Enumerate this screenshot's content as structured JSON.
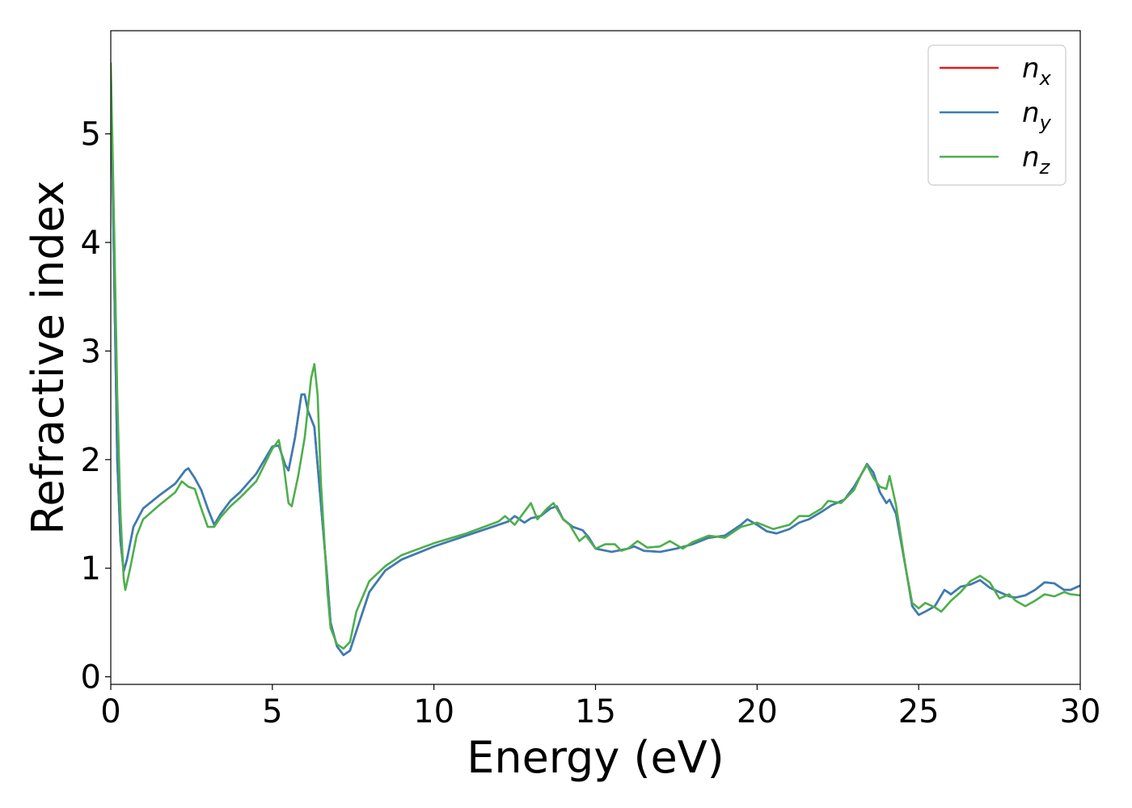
{
  "chart_data": {
    "type": "line",
    "xlabel": "Energy (eV)",
    "ylabel": "Refractive index",
    "xlim": [
      0,
      30
    ],
    "ylim": [
      -0.07,
      5.95
    ],
    "xticks": [
      0,
      5,
      10,
      15,
      20,
      25,
      30
    ],
    "yticks": [
      0,
      1,
      2,
      3,
      4,
      5
    ],
    "grid": false,
    "legend_position": "top-right",
    "series": [
      {
        "name": "n",
        "subscript": "x",
        "color": "#e41a1c",
        "points": [
          [
            0,
            5.6
          ],
          [
            0.1,
            3.8
          ],
          [
            0.2,
            2.0
          ],
          [
            0.3,
            1.25
          ],
          [
            0.4,
            0.97
          ],
          [
            0.5,
            1.08
          ],
          [
            0.7,
            1.38
          ],
          [
            1.0,
            1.55
          ],
          [
            1.5,
            1.67
          ],
          [
            2.0,
            1.78
          ],
          [
            2.3,
            1.9
          ],
          [
            2.4,
            1.92
          ],
          [
            2.6,
            1.83
          ],
          [
            2.8,
            1.72
          ],
          [
            3.0,
            1.55
          ],
          [
            3.2,
            1.4
          ],
          [
            3.4,
            1.5
          ],
          [
            3.7,
            1.62
          ],
          [
            4.0,
            1.7
          ],
          [
            4.5,
            1.87
          ],
          [
            5.0,
            2.12
          ],
          [
            5.2,
            2.13
          ],
          [
            5.4,
            1.95
          ],
          [
            5.5,
            1.9
          ],
          [
            5.7,
            2.2
          ],
          [
            5.9,
            2.6
          ],
          [
            6.0,
            2.6
          ],
          [
            6.1,
            2.45
          ],
          [
            6.3,
            2.3
          ],
          [
            6.5,
            1.6
          ],
          [
            6.7,
            0.9
          ],
          [
            6.8,
            0.5
          ],
          [
            7.0,
            0.28
          ],
          [
            7.2,
            0.2
          ],
          [
            7.4,
            0.24
          ],
          [
            7.6,
            0.42
          ],
          [
            8.0,
            0.78
          ],
          [
            8.5,
            0.98
          ],
          [
            9.0,
            1.08
          ],
          [
            10.0,
            1.2
          ],
          [
            11.0,
            1.3
          ],
          [
            12.0,
            1.4
          ],
          [
            12.3,
            1.43
          ],
          [
            12.5,
            1.48
          ],
          [
            12.8,
            1.42
          ],
          [
            13.0,
            1.46
          ],
          [
            13.3,
            1.48
          ],
          [
            13.6,
            1.55
          ],
          [
            13.8,
            1.57
          ],
          [
            14.0,
            1.45
          ],
          [
            14.3,
            1.38
          ],
          [
            14.6,
            1.35
          ],
          [
            14.8,
            1.28
          ],
          [
            15.0,
            1.18
          ],
          [
            15.5,
            1.15
          ],
          [
            16.0,
            1.18
          ],
          [
            16.2,
            1.2
          ],
          [
            16.5,
            1.16
          ],
          [
            17.0,
            1.15
          ],
          [
            17.5,
            1.18
          ],
          [
            18.0,
            1.22
          ],
          [
            18.5,
            1.28
          ],
          [
            19.0,
            1.3
          ],
          [
            19.5,
            1.4
          ],
          [
            19.7,
            1.45
          ],
          [
            20.0,
            1.4
          ],
          [
            20.3,
            1.34
          ],
          [
            20.6,
            1.32
          ],
          [
            21.0,
            1.36
          ],
          [
            21.3,
            1.42
          ],
          [
            21.6,
            1.45
          ],
          [
            22.0,
            1.52
          ],
          [
            22.3,
            1.58
          ],
          [
            22.7,
            1.63
          ],
          [
            23.0,
            1.75
          ],
          [
            23.2,
            1.85
          ],
          [
            23.4,
            1.96
          ],
          [
            23.6,
            1.88
          ],
          [
            23.8,
            1.7
          ],
          [
            24.0,
            1.6
          ],
          [
            24.1,
            1.63
          ],
          [
            24.3,
            1.5
          ],
          [
            24.6,
            1.0
          ],
          [
            24.8,
            0.65
          ],
          [
            25.0,
            0.57
          ],
          [
            25.2,
            0.6
          ],
          [
            25.5,
            0.65
          ],
          [
            25.8,
            0.8
          ],
          [
            26.0,
            0.76
          ],
          [
            26.3,
            0.83
          ],
          [
            26.6,
            0.85
          ],
          [
            26.9,
            0.89
          ],
          [
            27.2,
            0.82
          ],
          [
            27.5,
            0.78
          ],
          [
            27.8,
            0.74
          ],
          [
            28.0,
            0.73
          ],
          [
            28.3,
            0.75
          ],
          [
            28.6,
            0.8
          ],
          [
            28.9,
            0.87
          ],
          [
            29.2,
            0.86
          ],
          [
            29.5,
            0.8
          ],
          [
            29.7,
            0.8
          ],
          [
            30.0,
            0.84
          ]
        ]
      },
      {
        "name": "n",
        "subscript": "y",
        "color": "#377eb8",
        "points": [
          [
            0,
            5.6
          ],
          [
            0.1,
            3.8
          ],
          [
            0.2,
            2.0
          ],
          [
            0.3,
            1.25
          ],
          [
            0.4,
            0.97
          ],
          [
            0.5,
            1.08
          ],
          [
            0.7,
            1.38
          ],
          [
            1.0,
            1.55
          ],
          [
            1.5,
            1.67
          ],
          [
            2.0,
            1.78
          ],
          [
            2.3,
            1.9
          ],
          [
            2.4,
            1.92
          ],
          [
            2.6,
            1.83
          ],
          [
            2.8,
            1.72
          ],
          [
            3.0,
            1.55
          ],
          [
            3.2,
            1.4
          ],
          [
            3.4,
            1.5
          ],
          [
            3.7,
            1.62
          ],
          [
            4.0,
            1.7
          ],
          [
            4.5,
            1.87
          ],
          [
            5.0,
            2.12
          ],
          [
            5.2,
            2.13
          ],
          [
            5.4,
            1.95
          ],
          [
            5.5,
            1.9
          ],
          [
            5.7,
            2.2
          ],
          [
            5.9,
            2.6
          ],
          [
            6.0,
            2.6
          ],
          [
            6.1,
            2.45
          ],
          [
            6.3,
            2.3
          ],
          [
            6.5,
            1.6
          ],
          [
            6.7,
            0.9
          ],
          [
            6.8,
            0.5
          ],
          [
            7.0,
            0.28
          ],
          [
            7.2,
            0.2
          ],
          [
            7.4,
            0.24
          ],
          [
            7.6,
            0.42
          ],
          [
            8.0,
            0.78
          ],
          [
            8.5,
            0.98
          ],
          [
            9.0,
            1.08
          ],
          [
            10.0,
            1.2
          ],
          [
            11.0,
            1.3
          ],
          [
            12.0,
            1.4
          ],
          [
            12.3,
            1.43
          ],
          [
            12.5,
            1.48
          ],
          [
            12.8,
            1.42
          ],
          [
            13.0,
            1.46
          ],
          [
            13.3,
            1.48
          ],
          [
            13.6,
            1.55
          ],
          [
            13.8,
            1.57
          ],
          [
            14.0,
            1.45
          ],
          [
            14.3,
            1.38
          ],
          [
            14.6,
            1.35
          ],
          [
            14.8,
            1.28
          ],
          [
            15.0,
            1.18
          ],
          [
            15.5,
            1.15
          ],
          [
            16.0,
            1.18
          ],
          [
            16.2,
            1.2
          ],
          [
            16.5,
            1.16
          ],
          [
            17.0,
            1.15
          ],
          [
            17.5,
            1.18
          ],
          [
            18.0,
            1.22
          ],
          [
            18.5,
            1.28
          ],
          [
            19.0,
            1.3
          ],
          [
            19.5,
            1.4
          ],
          [
            19.7,
            1.45
          ],
          [
            20.0,
            1.4
          ],
          [
            20.3,
            1.34
          ],
          [
            20.6,
            1.32
          ],
          [
            21.0,
            1.36
          ],
          [
            21.3,
            1.42
          ],
          [
            21.6,
            1.45
          ],
          [
            22.0,
            1.52
          ],
          [
            22.3,
            1.58
          ],
          [
            22.7,
            1.63
          ],
          [
            23.0,
            1.75
          ],
          [
            23.2,
            1.85
          ],
          [
            23.4,
            1.96
          ],
          [
            23.6,
            1.88
          ],
          [
            23.8,
            1.7
          ],
          [
            24.0,
            1.6
          ],
          [
            24.1,
            1.63
          ],
          [
            24.3,
            1.5
          ],
          [
            24.6,
            1.0
          ],
          [
            24.8,
            0.65
          ],
          [
            25.0,
            0.57
          ],
          [
            25.2,
            0.6
          ],
          [
            25.5,
            0.65
          ],
          [
            25.8,
            0.8
          ],
          [
            26.0,
            0.76
          ],
          [
            26.3,
            0.83
          ],
          [
            26.6,
            0.85
          ],
          [
            26.9,
            0.89
          ],
          [
            27.2,
            0.82
          ],
          [
            27.5,
            0.78
          ],
          [
            27.8,
            0.74
          ],
          [
            28.0,
            0.73
          ],
          [
            28.3,
            0.75
          ],
          [
            28.6,
            0.8
          ],
          [
            28.9,
            0.87
          ],
          [
            29.2,
            0.86
          ],
          [
            29.5,
            0.8
          ],
          [
            29.7,
            0.8
          ],
          [
            30.0,
            0.84
          ]
        ]
      },
      {
        "name": "n",
        "subscript": "z",
        "color": "#4daf4a",
        "points": [
          [
            0,
            5.65
          ],
          [
            0.1,
            4.2
          ],
          [
            0.2,
            2.6
          ],
          [
            0.3,
            1.5
          ],
          [
            0.4,
            0.9
          ],
          [
            0.45,
            0.8
          ],
          [
            0.6,
            1.0
          ],
          [
            0.8,
            1.3
          ],
          [
            1.0,
            1.45
          ],
          [
            1.5,
            1.58
          ],
          [
            2.0,
            1.7
          ],
          [
            2.2,
            1.8
          ],
          [
            2.4,
            1.75
          ],
          [
            2.6,
            1.73
          ],
          [
            2.8,
            1.55
          ],
          [
            3.0,
            1.38
          ],
          [
            3.2,
            1.38
          ],
          [
            3.4,
            1.47
          ],
          [
            3.7,
            1.57
          ],
          [
            4.0,
            1.65
          ],
          [
            4.5,
            1.8
          ],
          [
            5.0,
            2.1
          ],
          [
            5.2,
            2.18
          ],
          [
            5.35,
            1.95
          ],
          [
            5.5,
            1.6
          ],
          [
            5.6,
            1.57
          ],
          [
            5.8,
            1.85
          ],
          [
            6.0,
            2.2
          ],
          [
            6.2,
            2.75
          ],
          [
            6.3,
            2.88
          ],
          [
            6.4,
            2.6
          ],
          [
            6.5,
            1.8
          ],
          [
            6.7,
            0.8
          ],
          [
            6.8,
            0.45
          ],
          [
            7.0,
            0.3
          ],
          [
            7.2,
            0.26
          ],
          [
            7.4,
            0.32
          ],
          [
            7.6,
            0.6
          ],
          [
            8.0,
            0.88
          ],
          [
            8.5,
            1.02
          ],
          [
            9.0,
            1.12
          ],
          [
            10.0,
            1.23
          ],
          [
            11.0,
            1.32
          ],
          [
            12.0,
            1.43
          ],
          [
            12.2,
            1.48
          ],
          [
            12.5,
            1.4
          ],
          [
            12.8,
            1.52
          ],
          [
            13.0,
            1.6
          ],
          [
            13.2,
            1.45
          ],
          [
            13.5,
            1.55
          ],
          [
            13.7,
            1.6
          ],
          [
            14.0,
            1.45
          ],
          [
            14.2,
            1.4
          ],
          [
            14.5,
            1.25
          ],
          [
            14.7,
            1.3
          ],
          [
            15.0,
            1.18
          ],
          [
            15.3,
            1.22
          ],
          [
            15.6,
            1.22
          ],
          [
            15.8,
            1.16
          ],
          [
            16.0,
            1.18
          ],
          [
            16.3,
            1.25
          ],
          [
            16.6,
            1.19
          ],
          [
            17.0,
            1.2
          ],
          [
            17.3,
            1.25
          ],
          [
            17.7,
            1.18
          ],
          [
            18.0,
            1.24
          ],
          [
            18.5,
            1.3
          ],
          [
            19.0,
            1.28
          ],
          [
            19.5,
            1.38
          ],
          [
            20.0,
            1.42
          ],
          [
            20.5,
            1.36
          ],
          [
            21.0,
            1.4
          ],
          [
            21.3,
            1.48
          ],
          [
            21.6,
            1.48
          ],
          [
            22.0,
            1.55
          ],
          [
            22.2,
            1.62
          ],
          [
            22.6,
            1.6
          ],
          [
            23.0,
            1.72
          ],
          [
            23.2,
            1.85
          ],
          [
            23.4,
            1.95
          ],
          [
            23.6,
            1.83
          ],
          [
            23.8,
            1.75
          ],
          [
            24.0,
            1.73
          ],
          [
            24.1,
            1.85
          ],
          [
            24.3,
            1.58
          ],
          [
            24.6,
            1.0
          ],
          [
            24.8,
            0.68
          ],
          [
            25.0,
            0.63
          ],
          [
            25.2,
            0.68
          ],
          [
            25.5,
            0.64
          ],
          [
            25.7,
            0.6
          ],
          [
            26.0,
            0.7
          ],
          [
            26.3,
            0.78
          ],
          [
            26.6,
            0.88
          ],
          [
            26.9,
            0.93
          ],
          [
            27.2,
            0.87
          ],
          [
            27.5,
            0.72
          ],
          [
            27.8,
            0.76
          ],
          [
            28.0,
            0.7
          ],
          [
            28.3,
            0.65
          ],
          [
            28.6,
            0.7
          ],
          [
            28.9,
            0.76
          ],
          [
            29.2,
            0.74
          ],
          [
            29.5,
            0.78
          ],
          [
            29.7,
            0.76
          ],
          [
            30.0,
            0.75
          ]
        ]
      }
    ]
  }
}
